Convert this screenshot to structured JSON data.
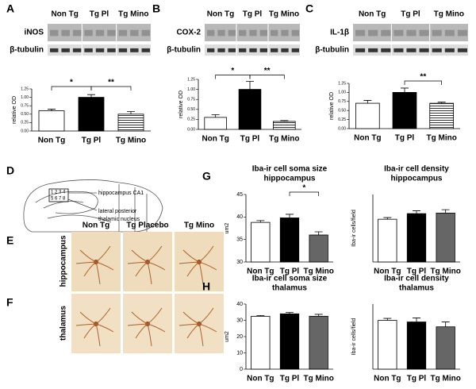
{
  "blots": [
    {
      "letter": "A",
      "groups": [
        "Non Tg",
        "Tg Pl",
        "Tg Mino"
      ],
      "rows": [
        "iNOS",
        "β-tubulin"
      ]
    },
    {
      "letter": "B",
      "groups": [
        "Non Tg",
        "Tg Pl",
        "Tg Mino"
      ],
      "rows": [
        "COX-2",
        "β-tubulin"
      ]
    },
    {
      "letter": "C",
      "groups": [
        "Non Tg",
        "Tg Pl",
        "Tg Mino"
      ],
      "rows": [
        "IL-1β",
        "β-tubulin"
      ]
    }
  ],
  "diagram": {
    "letter": "D",
    "markers": [
      "1 2 3 4",
      "5 6 7 8"
    ],
    "regions": [
      [
        "hippocampus CA1"
      ],
      [
        "lateral posterior",
        "thalamic nucleus"
      ]
    ]
  },
  "micrographs": {
    "columns": [
      "Non Tg",
      "Tg Placebo",
      "Tg Mino"
    ],
    "rows": [
      {
        "letter": "E",
        "label": "hippocampus"
      },
      {
        "letter": "F",
        "label": "thalamus"
      }
    ]
  },
  "chart_data": [
    {
      "type": "bar",
      "ylabel": "relative OD",
      "categories": [
        "Non Tg",
        "Tg Pl",
        "Tg Mino"
      ],
      "values": [
        0.6,
        1.0,
        0.5
      ],
      "errors": [
        0.05,
        0.08,
        0.08
      ],
      "colors": [
        "#ffffff",
        "#000000",
        "#ffffff"
      ],
      "hatch": [
        false,
        false,
        true
      ],
      "ylim": [
        0,
        1.25
      ],
      "yticks": [
        {
          "value": 0,
          "label": "0.00"
        },
        {
          "value": 0.25,
          "label": "0.25"
        },
        {
          "value": 0.5,
          "label": "0.50"
        },
        {
          "value": 0.75,
          "label": "0.75"
        },
        {
          "value": 1,
          "label": "1.00"
        },
        {
          "value": 1.25,
          "label": "1.25"
        }
      ],
      "annotations": [
        {
          "label": "*",
          "between": [
            "Non Tg",
            "Tg Pl"
          ]
        },
        {
          "label": "**",
          "between": [
            "Tg Pl",
            "Tg Mino"
          ]
        }
      ]
    },
    {
      "type": "bar",
      "ylabel": "relative OD",
      "categories": [
        "Non Tg",
        "Tg Pl",
        "Tg Mino"
      ],
      "values": [
        0.3,
        1.0,
        0.2
      ],
      "errors": [
        0.07,
        0.2,
        0.02
      ],
      "colors": [
        "#ffffff",
        "#000000",
        "#ffffff"
      ],
      "hatch": [
        false,
        false,
        true
      ],
      "ylim": [
        0,
        1.25
      ],
      "yticks": [
        {
          "value": 0,
          "label": "0.00"
        },
        {
          "value": 0.25,
          "label": "0.25"
        },
        {
          "value": 0.5,
          "label": "0.50"
        },
        {
          "value": 0.75,
          "label": "0.75"
        },
        {
          "value": 1,
          "label": "1.00"
        },
        {
          "value": 1.25,
          "label": "1.25"
        }
      ],
      "annotations": [
        {
          "label": "*",
          "between": [
            "Non Tg",
            "Tg Pl"
          ]
        },
        {
          "label": "**",
          "between": [
            "Tg Pl",
            "Tg Mino"
          ]
        }
      ]
    },
    {
      "type": "bar",
      "ylabel": "relative OD",
      "categories": [
        "Non Tg",
        "Tg Pl",
        "Tg Mino"
      ],
      "values": [
        0.7,
        1.0,
        0.7
      ],
      "errors": [
        0.08,
        0.12,
        0.03
      ],
      "colors": [
        "#ffffff",
        "#000000",
        "#ffffff"
      ],
      "hatch": [
        false,
        false,
        true
      ],
      "ylim": [
        0,
        1.25
      ],
      "yticks": [
        {
          "value": 0,
          "label": "0.00"
        },
        {
          "value": 0.25,
          "label": "0.25"
        },
        {
          "value": 0.5,
          "label": "0.50"
        },
        {
          "value": 0.75,
          "label": "0.75"
        },
        {
          "value": 1,
          "label": "1.00"
        },
        {
          "value": 1.25,
          "label": "1.25"
        }
      ],
      "annotations": [
        {
          "label": "**",
          "between": [
            "Tg Pl",
            "Tg Mino"
          ]
        }
      ]
    },
    {
      "type": "bar",
      "panel": "G",
      "title": [
        "Iba-ir cell soma size",
        "hippocampus"
      ],
      "ylabel": "um2",
      "categories": [
        "Non Tg",
        "Tg Pl",
        "Tg Mino"
      ],
      "values": [
        38.8,
        39.8,
        36
      ],
      "errors": [
        0.4,
        0.8,
        0.7
      ],
      "colors": [
        "#ffffff",
        "#000000",
        "#666666"
      ],
      "hatch": [
        false,
        false,
        false
      ],
      "ylim": [
        30,
        45
      ],
      "yticks": [
        30,
        35,
        40,
        45
      ],
      "annotations": [
        {
          "label": "*",
          "between": [
            "Tg Pl",
            "Tg Mino"
          ]
        }
      ]
    },
    {
      "type": "bar",
      "title": [
        "Iba-ir cell density",
        "hippocampus"
      ],
      "ylabel": "Iba-ir cells/field",
      "categories": [
        "Non Tg",
        "Tg Pl",
        "Tg Mino"
      ],
      "values": [
        3.8,
        4.3,
        4.35
      ],
      "errors": [
        0.15,
        0.25,
        0.3
      ],
      "colors": [
        "#ffffff",
        "#000000",
        "#666666"
      ],
      "hatch": [
        false,
        false,
        false
      ],
      "ylim": [
        0,
        6
      ],
      "yticks": []
    },
    {
      "type": "bar",
      "panel": "H",
      "title": [
        "Iba-ir cell soma size",
        "thalamus"
      ],
      "ylabel": "um2",
      "categories": [
        "Non Tg",
        "Tg Pl",
        "Tg Mino"
      ],
      "values": [
        32.5,
        34,
        32.5
      ],
      "errors": [
        0.5,
        0.8,
        1.2
      ],
      "colors": [
        "#ffffff",
        "#000000",
        "#666666"
      ],
      "hatch": [
        false,
        false,
        false
      ],
      "ylim": [
        0,
        40
      ],
      "yticks": [
        0,
        10,
        20,
        30,
        40
      ]
    },
    {
      "type": "bar",
      "title": [
        "Iba-ir cell density",
        "thalamus"
      ],
      "ylabel": "Iba-ir cells/field",
      "categories": [
        "Non Tg",
        "Tg Pl",
        "Tg Mino"
      ],
      "values": [
        3.0,
        2.9,
        2.6
      ],
      "errors": [
        0.12,
        0.25,
        0.3
      ],
      "colors": [
        "#ffffff",
        "#000000",
        "#666666"
      ],
      "hatch": [
        false,
        false,
        false
      ],
      "ylim": [
        0,
        4
      ],
      "yticks": []
    }
  ]
}
